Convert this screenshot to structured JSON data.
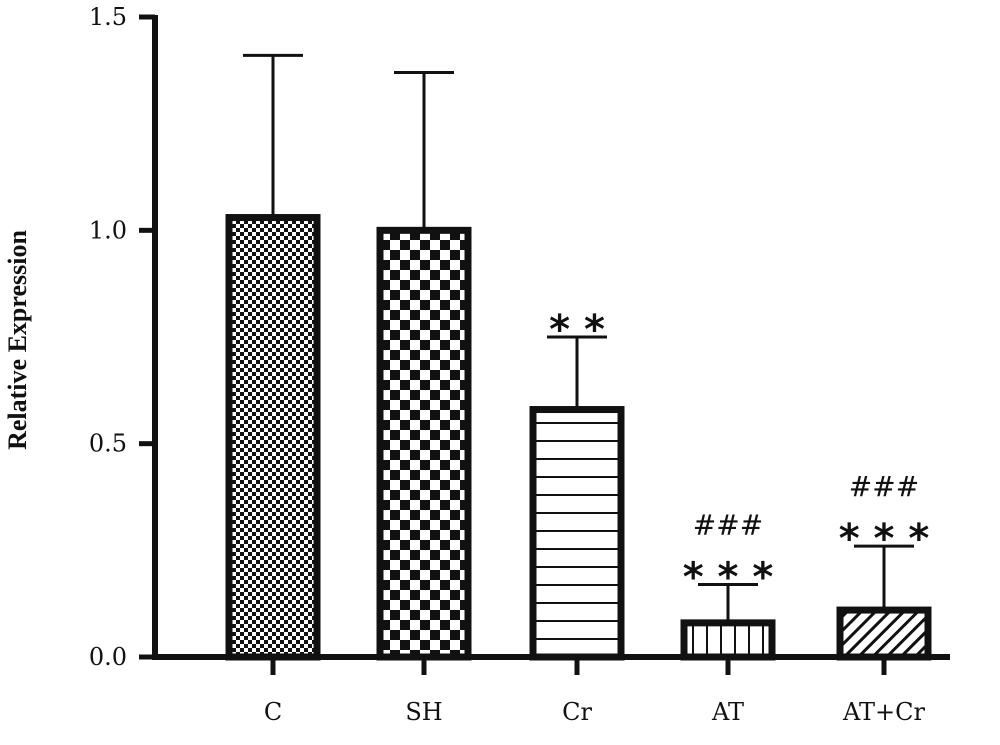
{
  "chart_data": {
    "type": "bar",
    "categories": [
      "C",
      "SH",
      "Cr",
      "AT",
      "AT+Cr"
    ],
    "values": [
      1.03,
      1.0,
      0.58,
      0.08,
      0.11
    ],
    "error_upper": [
      1.41,
      1.37,
      0.75,
      0.17,
      0.26
    ],
    "ylabel": "Relative Expression",
    "xlabel": "",
    "ylim": [
      0,
      1.5
    ],
    "yticks": [
      "0.0",
      "0.5",
      "1.0",
      "1.5"
    ],
    "grid": false,
    "patterns": [
      "fine-checker",
      "coarse-checker",
      "horizontal-lines",
      "vertical-lines",
      "diagonal-lines"
    ],
    "annotations": [
      {
        "category": "Cr",
        "stars": "* *",
        "hash": ""
      },
      {
        "category": "AT",
        "stars": "* * *",
        "hash": "###"
      },
      {
        "category": "AT+Cr",
        "stars": "* * *",
        "hash": "###"
      }
    ],
    "colors": {
      "bar_outline": "#111111",
      "bar_fill": "#ffffff",
      "axis": "#111111"
    }
  }
}
